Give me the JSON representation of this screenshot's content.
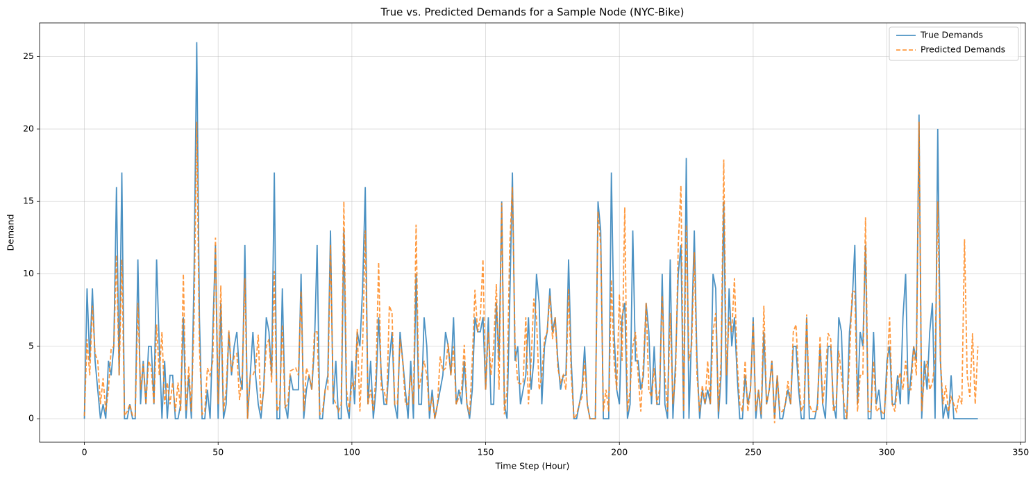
{
  "chart_data": {
    "type": "line",
    "title": "True vs. Predicted Demands for a Sample Node (NYC-Bike)",
    "xlabel": "Time Step (Hour)",
    "ylabel": "Demand",
    "xlim": [
      -16.75,
      351.75
    ],
    "xticks": [
      0,
      50,
      100,
      150,
      200,
      250,
      300,
      350
    ],
    "ylim": [
      -1.62,
      27.33
    ],
    "yticks": [
      0,
      5,
      10,
      15,
      20,
      25
    ],
    "grid": true,
    "legend": "upper right",
    "series": [
      {
        "name": "True Demands",
        "color": "#1f77b4",
        "linestyle": "solid",
        "values": [
          0,
          9,
          4,
          9,
          4,
          2,
          0,
          1,
          0,
          4,
          3,
          5,
          16,
          3,
          17,
          0,
          0,
          1,
          0,
          0,
          11,
          1,
          4,
          1,
          5,
          5,
          1,
          11,
          5,
          0,
          4,
          0,
          3,
          3,
          0,
          0,
          1,
          7,
          0,
          3,
          0,
          10,
          26,
          7,
          0,
          0,
          2,
          0,
          6,
          12,
          0,
          8,
          0,
          1,
          6,
          3,
          5,
          6,
          3,
          2,
          12,
          0,
          3,
          6,
          3,
          1,
          0,
          2,
          7,
          6,
          3,
          17,
          0,
          0,
          9,
          1,
          0,
          3,
          2,
          2,
          2,
          10,
          0,
          2,
          3,
          2,
          5,
          12,
          0,
          0,
          2,
          3,
          13,
          1,
          4,
          0,
          0,
          13,
          1,
          0,
          4,
          1,
          6,
          5,
          9,
          16,
          1,
          4,
          0,
          2,
          7,
          3,
          1,
          1,
          4,
          6,
          1,
          0,
          6,
          4,
          2,
          0,
          4,
          0,
          10,
          1,
          1,
          7,
          5,
          0,
          2,
          0,
          1,
          2,
          3,
          6,
          5,
          3,
          7,
          1,
          2,
          1,
          4,
          1,
          0,
          2,
          7,
          6,
          6,
          7,
          2,
          7,
          1,
          1,
          8,
          4,
          15,
          1,
          0,
          8,
          17,
          4,
          5,
          1,
          2,
          3,
          7,
          2,
          4,
          10,
          8,
          1,
          5,
          6,
          9,
          6,
          7,
          4,
          2,
          3,
          3,
          11,
          4,
          0,
          0,
          1,
          2,
          5,
          1,
          0,
          0,
          0,
          15,
          13,
          0,
          0,
          0,
          17,
          6,
          2,
          1,
          7,
          8,
          0,
          1,
          13,
          4,
          4,
          2,
          3,
          8,
          6,
          1,
          5,
          1,
          1,
          10,
          1,
          0,
          11,
          0,
          4,
          10,
          12,
          0,
          18,
          0,
          6,
          13,
          4,
          0,
          2,
          1,
          2,
          1,
          10,
          9,
          0,
          3,
          15,
          1,
          9,
          5,
          7,
          3,
          0,
          0,
          3,
          1,
          2,
          7,
          0,
          2,
          0,
          6,
          1,
          2,
          4,
          0,
          3,
          0,
          0,
          1,
          2,
          1,
          5,
          5,
          2,
          0,
          0,
          7,
          0,
          0,
          0,
          1,
          5,
          1,
          0,
          5,
          5,
          1,
          0,
          7,
          6,
          0,
          0,
          6,
          8,
          12,
          1,
          6,
          5,
          12,
          0,
          0,
          6,
          1,
          2,
          0,
          0,
          4,
          5,
          1,
          1,
          3,
          1,
          7,
          10,
          1,
          3,
          5,
          4,
          21,
          0,
          4,
          2,
          6,
          8,
          0,
          20,
          4,
          0,
          1,
          0,
          3,
          0,
          0,
          0,
          0,
          0,
          0,
          0,
          0,
          0,
          0
        ]
      },
      {
        "name": "Predicted Demands",
        "color": "#ff7f0e",
        "linestyle": "dashed",
        "values": [
          0.2,
          5.5,
          3,
          7.8,
          4.5,
          4,
          1,
          2.8,
          0.5,
          2,
          4.8,
          5,
          11.3,
          3,
          11,
          0.2,
          0.5,
          1,
          0.2,
          0.2,
          8,
          2,
          3.8,
          1,
          4,
          3.5,
          1,
          6.5,
          3,
          6,
          1,
          2.5,
          1,
          2.5,
          0.5,
          2.5,
          0.5,
          10,
          0.5,
          3.6,
          0.5,
          7,
          20.5,
          5,
          0.3,
          0.5,
          3.5,
          3,
          4,
          12.5,
          1,
          9.2,
          0.5,
          2,
          6.1,
          3.2,
          4.3,
          4.5,
          1.3,
          3,
          9.7,
          0,
          3,
          3,
          3.5,
          5.8,
          0.5,
          2,
          5,
          5.5,
          2.5,
          10.2,
          0.5,
          1,
          6.5,
          0.8,
          1,
          3.3,
          3.4,
          3.5,
          3,
          8.8,
          0.5,
          3.5,
          3,
          2,
          6,
          6,
          0.3,
          0.5,
          2,
          2,
          12,
          1.5,
          1,
          0.5,
          1,
          15,
          2,
          0.5,
          2.5,
          2,
          6.2,
          0.5,
          5,
          13,
          1,
          2,
          0.5,
          3,
          10.8,
          2,
          2,
          1,
          7.8,
          7.3,
          1,
          1,
          5.5,
          4,
          1,
          1,
          3,
          1,
          13.4,
          2,
          3,
          4,
          3,
          0.5,
          1.5,
          0,
          1,
          4.3,
          3.3,
          3.5,
          5.2,
          3,
          5,
          1,
          1.5,
          2,
          5.1,
          1,
          0.3,
          4,
          8.9,
          6,
          7,
          11,
          2,
          6,
          3,
          5,
          9.3,
          2,
          14.9,
          0.3,
          2,
          12,
          16,
          5,
          2.5,
          2.4,
          2.5,
          7,
          1,
          4,
          8.3,
          7,
          2,
          3,
          5.5,
          6,
          8.5,
          5.5,
          7,
          3.5,
          2.5,
          3,
          2,
          9,
          3,
          0,
          0.3,
          1,
          1.5,
          4,
          1,
          0,
          0,
          0,
          14.3,
          12,
          0.5,
          2,
          0.5,
          9.6,
          4,
          2,
          8.6,
          4,
          14.6,
          0.5,
          2,
          5,
          6,
          3,
          0.5,
          4,
          8,
          2,
          1.5,
          3.5,
          1,
          2,
          8.5,
          3,
          0.5,
          7.3,
          1,
          3,
          12,
          16.1,
          0.5,
          13.4,
          4,
          5,
          11.5,
          3,
          0.5,
          2.3,
          1,
          4,
          1,
          6,
          7.3,
          0.5,
          4,
          17.9,
          3,
          7,
          6,
          9.7,
          4,
          1,
          0.5,
          4,
          0.5,
          2,
          6.7,
          0.5,
          2,
          0.3,
          7.8,
          1,
          2,
          4,
          -0.3,
          3,
          0.5,
          0.5,
          1,
          2.6,
          1,
          6,
          6.5,
          3,
          0.5,
          1,
          7.2,
          1,
          0.5,
          0.5,
          0.5,
          5.7,
          1,
          3,
          5.9,
          5.5,
          0.5,
          1,
          4.7,
          3,
          1,
          0,
          4,
          8.8,
          8.8,
          0.5,
          3,
          3,
          13.9,
          0.5,
          0.5,
          4,
          0.5,
          0.7,
          0.5,
          0.3,
          3,
          7,
          1,
          0.5,
          2.5,
          3.2,
          2,
          4,
          2,
          2,
          5,
          3,
          20.5,
          0.5,
          3,
          4,
          2,
          2.5,
          4,
          15,
          4,
          1,
          2.3,
          0.5,
          1.5,
          1,
          0.5,
          1.6,
          1,
          12.4,
          3,
          1.5,
          5.9,
          1,
          5
        ]
      }
    ]
  }
}
